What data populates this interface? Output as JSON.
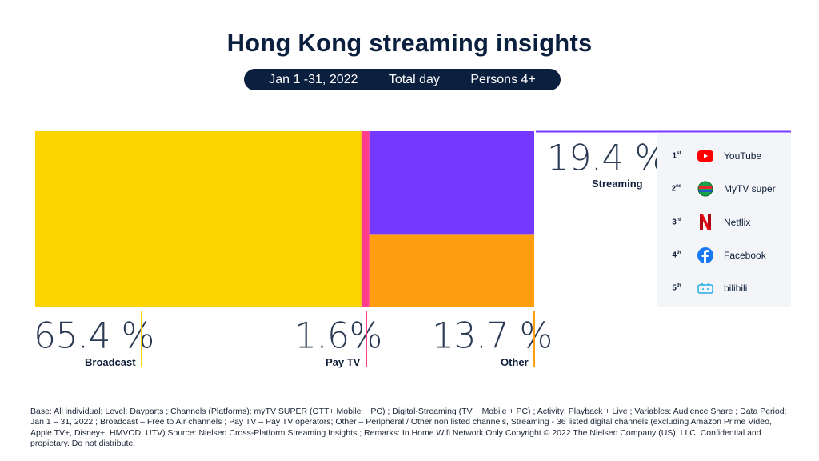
{
  "title": "Hong Kong streaming insights",
  "filters": {
    "period": "Jan 1 -31, 2022",
    "daypart": "Total day",
    "audience": "Persons 4+"
  },
  "chart_data": {
    "type": "treemap",
    "unit": "%",
    "segments": [
      {
        "name": "Broadcast",
        "value": 65.4,
        "label": "65.4 %",
        "color": "#fcd500"
      },
      {
        "name": "Pay TV",
        "value": 1.6,
        "label": "1.6%",
        "color": "#ff3d8a"
      },
      {
        "name": "Streaming",
        "value": 19.4,
        "label": "19.4 %",
        "color": "#7438ff"
      },
      {
        "name": "Other",
        "value": 13.7,
        "label": "13.7 %",
        "color": "#ff9e0f"
      }
    ]
  },
  "ranking": {
    "items": [
      {
        "rank": "1",
        "suffix": "st",
        "name": "YouTube",
        "icon": "youtube-icon"
      },
      {
        "rank": "2",
        "suffix": "nd",
        "name": "MyTV super",
        "icon": "mytv-super-icon"
      },
      {
        "rank": "3",
        "suffix": "rd",
        "name": "Netflix",
        "icon": "netflix-icon"
      },
      {
        "rank": "4",
        "suffix": "th",
        "name": "Facebook",
        "icon": "facebook-icon"
      },
      {
        "rank": "5",
        "suffix": "th",
        "name": "bilibili",
        "icon": "bilibili-icon"
      }
    ]
  },
  "footnote": "Base: All individual; Level: Dayparts ; Channels (Platforms): myTV SUPER (OTT+ Mobile + PC) ; Digital-Streaming (TV + Mobile + PC) ; Activity: Playback + Live ; Variables: Audience Share ; Data Period: Jan 1 – 31, 2022 ; Broadcast – Free to Air channels ; Pay TV – Pay TV operators; Other – Peripheral / Other non listed channels, Streaming - 36 listed digital channels (excluding Amazon Prime Video, Apple TV+, Disney+, HMVOD, UTV) Source: Nielsen Cross-Platform Streaming Insights ; Remarks: In Home Wifi Network Only Copyright © 2022 The Nielsen Company (US), LLC. Confidential and propietary. Do not distribute."
}
